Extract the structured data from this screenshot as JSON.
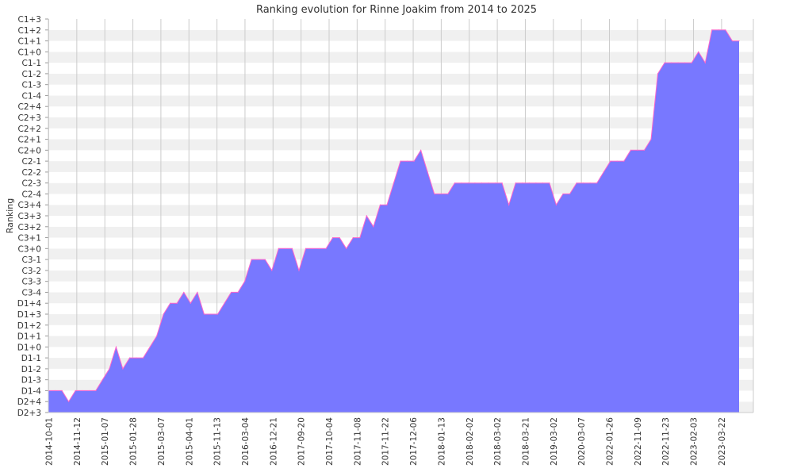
{
  "chart_data": {
    "type": "area",
    "title": "Ranking evolution for Rinne Joakim from 2014 to 2025",
    "xlabel": "",
    "ylabel": "Ranking",
    "grid": true,
    "legend": "none",
    "colors": {
      "fill": "#7878ff",
      "line": "#ff66cc",
      "band_a": "#f0f0f0",
      "band_b": "#ffffff",
      "grid": "#cccccc"
    },
    "y_levels": [
      "D2+3",
      "D2+4",
      "D1-4",
      "D1-3",
      "D1-2",
      "D1-1",
      "D1+0",
      "D1+1",
      "D1+2",
      "D1+3",
      "D1+4",
      "C3-4",
      "C3-3",
      "C3-2",
      "C3-1",
      "C3+0",
      "C3+1",
      "C3+2",
      "C3+3",
      "C3+4",
      "C2-4",
      "C2-3",
      "C2-2",
      "C2-1",
      "C2+0",
      "C2+1",
      "C2+2",
      "C2+3",
      "C2+4",
      "C1-4",
      "C1-3",
      "C1-2",
      "C1-1",
      "C1+0",
      "C1+1",
      "C1+2",
      "C1+3"
    ],
    "x_tick_labels": [
      "2014-10-01",
      "2014-11-12",
      "2015-01-07",
      "2015-01-28",
      "2015-03-07",
      "2015-04-01",
      "2015-11-13",
      "2016-03-04",
      "2016-12-21",
      "2017-09-20",
      "2017-10-04",
      "2017-11-08",
      "2017-11-22",
      "2017-12-06",
      "2018-01-13",
      "2018-02-02",
      "2018-03-02",
      "2018-03-21",
      "2019-03-02",
      "2020-03-07",
      "2022-01-26",
      "2022-11-09",
      "2022-11-23",
      "2023-02-03",
      "2023-03-22"
    ],
    "values": [
      "D1-4",
      "D1-4",
      "D1-4",
      "D2+4",
      "D1-4",
      "D1-4",
      "D1-4",
      "D1-4",
      "D1-3",
      "D1-2",
      "D1+0",
      "D1-2",
      "D1-1",
      "D1-1",
      "D1-1",
      "D1+0",
      "D1+1",
      "D1+3",
      "D1+4",
      "D1+4",
      "C3-4",
      "D1+4",
      "C3-4",
      "D1+3",
      "D1+3",
      "D1+3",
      "D1+4",
      "C3-4",
      "C3-4",
      "C3-3",
      "C3-1",
      "C3-1",
      "C3-1",
      "C3-2",
      "C3+0",
      "C3+0",
      "C3+0",
      "C3-2",
      "C3+0",
      "C3+0",
      "C3+0",
      "C3+0",
      "C3+1",
      "C3+1",
      "C3+0",
      "C3+1",
      "C3+1",
      "C3+3",
      "C3+2",
      "C3+4",
      "C3+4",
      "C2-3",
      "C2-1",
      "C2-1",
      "C2-1",
      "C2+0",
      "C2-2",
      "C2-4",
      "C2-4",
      "C2-4",
      "C2-3",
      "C2-3",
      "C2-3",
      "C2-3",
      "C2-3",
      "C2-3",
      "C2-3",
      "C2-3",
      "C3+4",
      "C2-3",
      "C2-3",
      "C2-3",
      "C2-3",
      "C2-3",
      "C2-3",
      "C3+4",
      "C2-4",
      "C2-4",
      "C2-3",
      "C2-3",
      "C2-3",
      "C2-3",
      "C2-2",
      "C2-1",
      "C2-1",
      "C2-1",
      "C2+0",
      "C2+0",
      "C2+0",
      "C2+1",
      "C1-2",
      "C1-1",
      "C1-1",
      "C1-1",
      "C1-1",
      "C1-1",
      "C1+0",
      "C1-1",
      "C1+2",
      "C1+2",
      "C1+2",
      "C1+1",
      "C1+1"
    ]
  }
}
